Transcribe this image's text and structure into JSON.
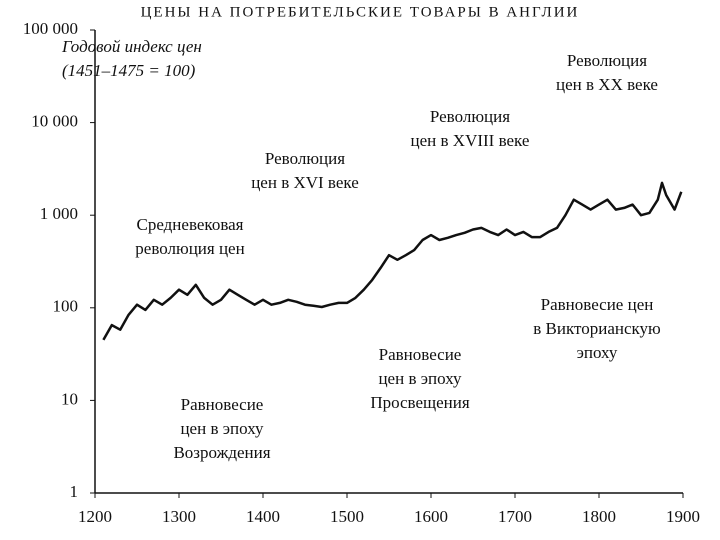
{
  "chart_data": {
    "type": "line",
    "title": "ЦЕНЫ НА ПОТРЕБИТЕЛЬСКИЕ ТОВАРЫ В АНГЛИИ",
    "log_scale": true,
    "x": [
      1210,
      1220,
      1230,
      1240,
      1250,
      1260,
      1270,
      1280,
      1290,
      1300,
      1310,
      1320,
      1330,
      1340,
      1350,
      1360,
      1370,
      1380,
      1390,
      1400,
      1410,
      1420,
      1430,
      1440,
      1450,
      1460,
      1470,
      1480,
      1490,
      1500,
      1510,
      1520,
      1530,
      1540,
      1550,
      1560,
      1570,
      1580,
      1590,
      1600,
      1610,
      1620,
      1630,
      1640,
      1650,
      1660,
      1670,
      1680,
      1690,
      1700,
      1710,
      1720,
      1730,
      1740,
      1750,
      1760,
      1770,
      1780,
      1790,
      1800,
      1810,
      1820,
      1830,
      1840,
      1850,
      1860,
      1870,
      1875,
      1880,
      1890,
      1898
    ],
    "series": [
      {
        "color": "#111111",
        "values": [
          45,
          65,
          58,
          84,
          108,
          95,
          122,
          108,
          128,
          157,
          138,
          177,
          128,
          108,
          122,
          157,
          138,
          122,
          108,
          122,
          108,
          113,
          122,
          116,
          108,
          105,
          102,
          108,
          113,
          113,
          128,
          157,
          200,
          270,
          370,
          330,
          370,
          420,
          540,
          610,
          540,
          570,
          610,
          645,
          700,
          730,
          660,
          610,
          700,
          610,
          660,
          580,
          580,
          660,
          730,
          1000,
          1470,
          1300,
          1150,
          1300,
          1470,
          1150,
          1200,
          1300,
          1000,
          1060,
          1470,
          2230,
          1650,
          1150,
          1790
        ]
      }
    ],
    "xlim": [
      1200,
      1900
    ],
    "xticks": [
      1200,
      1300,
      1400,
      1500,
      1600,
      1700,
      1800,
      1900
    ],
    "ylim": [
      1,
      100000
    ],
    "yticks": [
      1,
      10,
      100,
      {
        "value": 1000,
        "label": "1 000"
      },
      {
        "value": 10000,
        "label": "10 000"
      },
      {
        "value": 100000,
        "label": "100 000"
      }
    ],
    "annotations": [
      [
        "Годовой индекс цен",
        "(1451–1475 = 100)"
      ],
      [
        "Революция",
        "цен в XX веке"
      ],
      [
        "Революция",
        "цен в XVIII веке"
      ],
      [
        "Революция",
        "цен в XVI веке"
      ],
      [
        "Средневековая",
        "революция цен"
      ],
      [
        "Равновесие цен",
        "в Викторианскую",
        "эпоху"
      ],
      [
        "Равновесие",
        "цен в эпоху",
        "Просвещения"
      ],
      [
        "Равновесие",
        "цен в эпоху",
        "Возрождения"
      ]
    ]
  }
}
